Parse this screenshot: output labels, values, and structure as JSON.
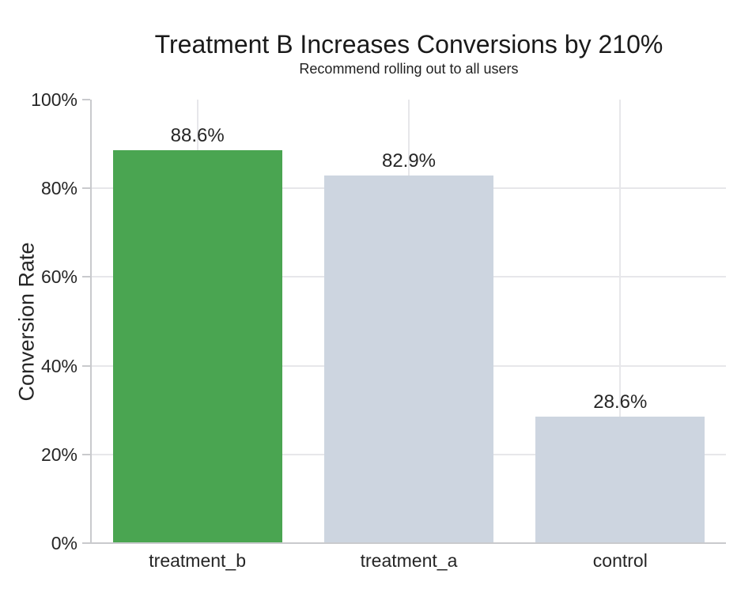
{
  "chart_data": {
    "type": "bar",
    "title": "Treatment B Increases Conversions by 210%",
    "subtitle": "Recommend rolling out to all users",
    "ylabel": "Conversion Rate",
    "xlabel": "",
    "categories": [
      "treatment_b",
      "treatment_a",
      "control"
    ],
    "values": [
      88.6,
      82.9,
      28.6
    ],
    "bar_labels": [
      "88.6%",
      "82.9%",
      "28.6%"
    ],
    "bar_colors": [
      "#4aa551",
      "#cdd5e0",
      "#cdd5e0"
    ],
    "highlight_color": "#4aa551",
    "neutral_color": "#cdd5e0",
    "ylim": [
      0,
      100
    ],
    "yticks": [
      0,
      20,
      40,
      60,
      80,
      100
    ],
    "ytick_labels": [
      "0%",
      "20%",
      "40%",
      "60%",
      "80%",
      "100%"
    ],
    "grid_lines_horizontal_at": [
      20,
      40,
      60,
      80
    ],
    "grid_lines_vertical": "at category centers",
    "grid_color": "#e7e7ea",
    "spine_color": "#c9cacd",
    "text_color": "#262626",
    "legend": "none"
  }
}
